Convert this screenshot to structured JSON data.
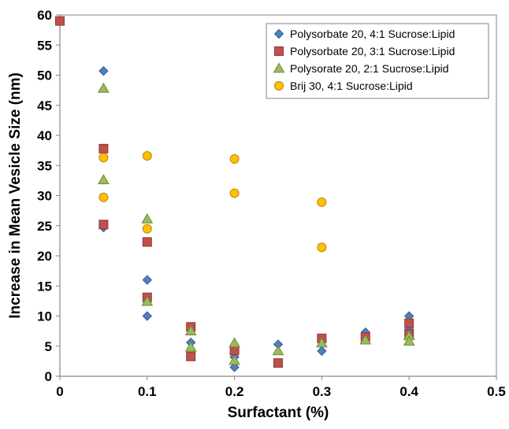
{
  "chart_data": {
    "type": "scatter",
    "title": "",
    "xlabel": "Surfactant (%)",
    "ylabel": "Increase in Mean Vesicle Size (nm)",
    "xlim": [
      0,
      0.5
    ],
    "ylim": [
      0,
      60
    ],
    "xticks": [
      "0",
      "0.1",
      "0.2",
      "0.3",
      "0.4",
      "0.5"
    ],
    "yticks": [
      "0",
      "5",
      "10",
      "15",
      "20",
      "25",
      "30",
      "35",
      "40",
      "45",
      "50",
      "55",
      "60"
    ],
    "xtick_values": [
      0,
      0.1,
      0.2,
      0.3,
      0.4,
      0.5
    ],
    "ytick_values": [
      0,
      5,
      10,
      15,
      20,
      25,
      30,
      35,
      40,
      45,
      50,
      55,
      60
    ],
    "grid": false,
    "legend_position": "top-right",
    "series": [
      {
        "name": "Polysorbate 20, 4:1 Sucrose:Lipid",
        "marker": "diamond",
        "color": "#4F81BD",
        "stroke": "#385D8A",
        "points": [
          [
            0.05,
            50.7
          ],
          [
            0.05,
            24.7
          ],
          [
            0.1,
            16.0
          ],
          [
            0.1,
            10.0
          ],
          [
            0.15,
            5.6
          ],
          [
            0.2,
            1.5
          ],
          [
            0.2,
            3.2
          ],
          [
            0.25,
            5.3
          ],
          [
            0.3,
            4.2
          ],
          [
            0.35,
            7.3
          ],
          [
            0.4,
            10.0
          ],
          [
            0.4,
            7.8
          ]
        ]
      },
      {
        "name": "Polysorbate 20, 3:1 Sucrose:Lipid",
        "marker": "square",
        "color": "#C0504D",
        "stroke": "#8C3836",
        "points": [
          [
            0,
            59.0
          ],
          [
            0.05,
            37.8
          ],
          [
            0.05,
            25.2
          ],
          [
            0.1,
            22.3
          ],
          [
            0.1,
            13.1
          ],
          [
            0.15,
            8.2
          ],
          [
            0.15,
            3.3
          ],
          [
            0.2,
            4.3
          ],
          [
            0.25,
            2.2
          ],
          [
            0.3,
            6.3
          ],
          [
            0.35,
            6.5
          ],
          [
            0.4,
            8.8
          ],
          [
            0.4,
            7.0
          ]
        ]
      },
      {
        "name": "Polysorate 20, 2:1 Sucrose:Lipid",
        "marker": "triangle",
        "color": "#9BBB59",
        "stroke": "#71893F",
        "points": [
          [
            0.05,
            47.8
          ],
          [
            0.05,
            32.6
          ],
          [
            0.1,
            26.1
          ],
          [
            0.1,
            12.4
          ],
          [
            0.15,
            7.5
          ],
          [
            0.15,
            4.8
          ],
          [
            0.2,
            5.5
          ],
          [
            0.2,
            2.6
          ],
          [
            0.25,
            4.2
          ],
          [
            0.3,
            5.5
          ],
          [
            0.35,
            6.0
          ],
          [
            0.4,
            6.7
          ],
          [
            0.4,
            5.8
          ]
        ]
      },
      {
        "name": "Brij 30, 4:1 Sucrose:Lipid",
        "marker": "circle",
        "color": "#FFC000",
        "stroke": "#B8860B",
        "points": [
          [
            0.05,
            36.3
          ],
          [
            0.05,
            29.7
          ],
          [
            0.1,
            36.6
          ],
          [
            0.1,
            24.5
          ],
          [
            0.2,
            36.1
          ],
          [
            0.2,
            30.4
          ],
          [
            0.3,
            28.9
          ],
          [
            0.3,
            21.4
          ]
        ]
      }
    ]
  }
}
